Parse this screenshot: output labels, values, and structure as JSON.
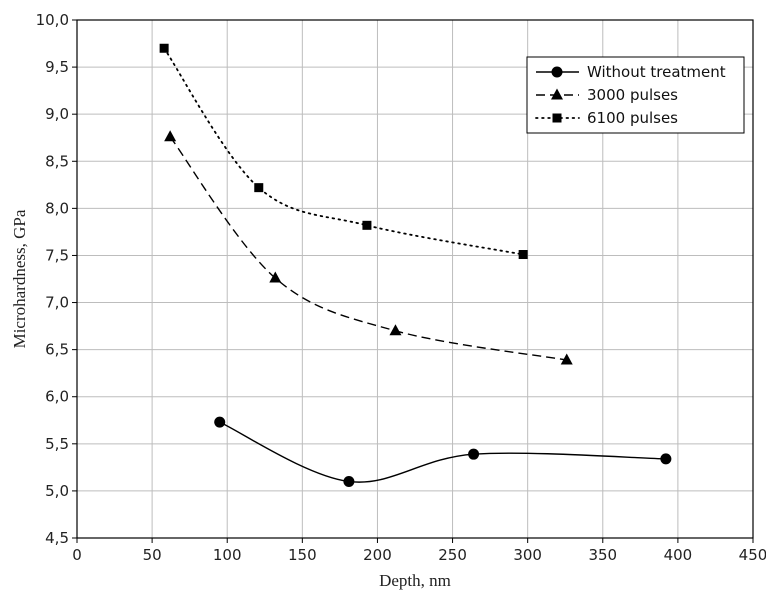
{
  "chart_data": {
    "type": "line",
    "xlabel": "Depth, nm",
    "ylabel": "Microhardness, GPa",
    "xlim": [
      0,
      450
    ],
    "ylim": [
      4.5,
      10.0
    ],
    "x_ticks": [
      "0",
      "50",
      "100",
      "150",
      "200",
      "250",
      "300",
      "350",
      "400",
      "450"
    ],
    "y_ticks": [
      "4,5",
      "5,0",
      "5,5",
      "6,0",
      "6,5",
      "7,0",
      "7,5",
      "8,0",
      "8,5",
      "9,0",
      "9,5",
      "10,0"
    ],
    "grid": true,
    "legend_position": "top-right",
    "series": [
      {
        "name": "Without treatment",
        "marker": "circle",
        "line_style": "solid",
        "points": [
          [
            95,
            5.73
          ],
          [
            181,
            5.1
          ],
          [
            264,
            5.39
          ],
          [
            392,
            5.34
          ]
        ]
      },
      {
        "name": "3000 pulses",
        "marker": "triangle",
        "line_style": "dashed",
        "points": [
          [
            62,
            8.76
          ],
          [
            132,
            7.26
          ],
          [
            212,
            6.7
          ],
          [
            326,
            6.39
          ]
        ]
      },
      {
        "name": "6100 pulses",
        "marker": "square",
        "line_style": "dotted",
        "points": [
          [
            58,
            9.7
          ],
          [
            121,
            8.22
          ],
          [
            193,
            7.82
          ],
          [
            297,
            7.51
          ]
        ]
      }
    ]
  }
}
